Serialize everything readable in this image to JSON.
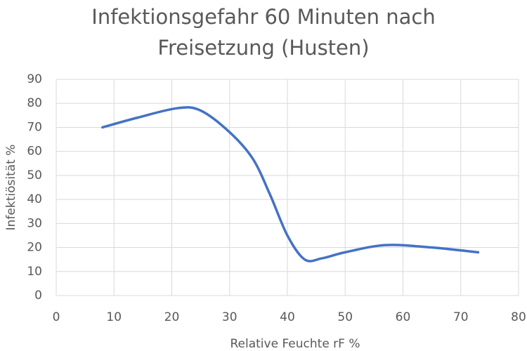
{
  "chart_data": {
    "type": "line",
    "title": "Infektionsgefahr 60 Minuten nach Freisetzung (Husten)",
    "x_label": "Relative Feuchte rF %",
    "y_label": "Infektiösität %",
    "x": [
      8,
      14,
      21,
      25,
      30,
      34,
      37,
      40,
      43,
      46,
      50,
      57,
      65,
      73
    ],
    "series": [
      {
        "color": "#4472c4",
        "values": [
          70,
          74,
          78,
          77,
          68,
          57,
          42,
          25,
          15,
          15.5,
          18,
          21,
          20,
          18
        ]
      }
    ],
    "xlim": [
      0,
      80
    ],
    "xticks": [
      0,
      10,
      20,
      30,
      40,
      50,
      60,
      70,
      80
    ],
    "ylim": [
      0,
      90
    ],
    "yticks": [
      0,
      10,
      20,
      30,
      40,
      50,
      60,
      70,
      80,
      90
    ],
    "grid": true,
    "smooth": true
  }
}
